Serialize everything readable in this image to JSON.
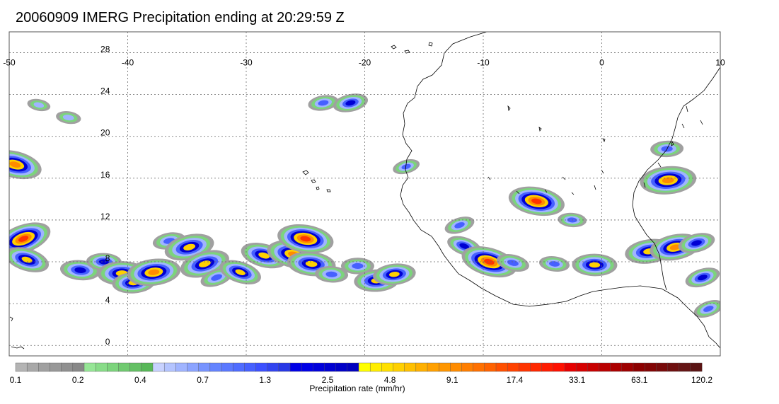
{
  "title": "20060909 IMERG Precipitation ending at 20:29:59 Z",
  "map": {
    "lon_range": [
      -50,
      10
    ],
    "lat_range": [
      -1,
      30
    ],
    "lon_ticks": [
      "-50",
      "-40",
      "-30",
      "-20",
      "-10",
      "0",
      "10"
    ],
    "lat_ticks": [
      "28",
      "24",
      "20",
      "16",
      "12",
      "8",
      "4",
      "0"
    ],
    "grid": true,
    "coastline_color": "#000000"
  },
  "colorbar": {
    "label": "Precipitation rate (mm/hr)",
    "tick_labels": [
      "0.1",
      "0.2",
      "0.4",
      "0.7",
      "1.3",
      "2.5",
      "4.8",
      "9.1",
      "17.4",
      "33.1",
      "63.1",
      "120.2"
    ],
    "colors": [
      "#b4b4b4",
      "#a8a8a8",
      "#a0a0a0",
      "#989898",
      "#909090",
      "#888888",
      "#96e696",
      "#88dc88",
      "#7cd47c",
      "#70ca70",
      "#64c064",
      "#58b858",
      "#c8d2ff",
      "#b4c4ff",
      "#a0b4ff",
      "#8ca4ff",
      "#7894ff",
      "#6484ff",
      "#5a78ff",
      "#4f6cff",
      "#4660ff",
      "#3c50ff",
      "#3244f0",
      "#2838e6",
      "#0000e6",
      "#0000e6",
      "#0000dc",
      "#0000d2",
      "#0000c8",
      "#0000be",
      "#ffff00",
      "#ffee00",
      "#ffe000",
      "#ffd000",
      "#ffc000",
      "#ffb000",
      "#ffa000",
      "#ff9600",
      "#ff8c00",
      "#ff7e00",
      "#ff7000",
      "#ff6200",
      "#ff5000",
      "#ff4200",
      "#ff3400",
      "#ff2800",
      "#ff1c00",
      "#ff1000",
      "#e60000",
      "#d60000",
      "#c80000",
      "#ba0000",
      "#ac0000",
      "#9e0000",
      "#8c0000",
      "#820505",
      "#780a0a",
      "#6e0f0f",
      "#641414",
      "#5a1414"
    ]
  },
  "rain_cells": [
    {
      "lon": -48.8,
      "lat": 10.2,
      "peak": 20
    },
    {
      "lon": -48.5,
      "lat": 8.2,
      "peak": 6
    },
    {
      "lon": -49.5,
      "lat": 17.3,
      "peak": 12
    },
    {
      "lon": -47.5,
      "lat": 23.0,
      "peak": 0.5
    },
    {
      "lon": -45.0,
      "lat": 21.8,
      "peak": 0.7
    },
    {
      "lon": -44.0,
      "lat": 7.2,
      "peak": 4
    },
    {
      "lon": -42.0,
      "lat": 8.0,
      "peak": 2.5
    },
    {
      "lon": -40.5,
      "lat": 6.9,
      "peak": 8
    },
    {
      "lon": -39.5,
      "lat": 6.0,
      "peak": 5
    },
    {
      "lon": -37.8,
      "lat": 7.0,
      "peak": 12
    },
    {
      "lon": -36.5,
      "lat": 10.0,
      "peak": 2
    },
    {
      "lon": -34.8,
      "lat": 9.4,
      "peak": 9
    },
    {
      "lon": -33.5,
      "lat": 7.8,
      "peak": 9
    },
    {
      "lon": -32.5,
      "lat": 6.5,
      "peak": 2
    },
    {
      "lon": -30.5,
      "lat": 7.0,
      "peak": 5
    },
    {
      "lon": -28.5,
      "lat": 8.6,
      "peak": 7
    },
    {
      "lon": -26.0,
      "lat": 8.7,
      "peak": 12
    },
    {
      "lon": -25.0,
      "lat": 10.2,
      "peak": 25
    },
    {
      "lon": -24.5,
      "lat": 7.8,
      "peak": 8
    },
    {
      "lon": -22.8,
      "lat": 6.8,
      "peak": 2
    },
    {
      "lon": -20.6,
      "lat": 7.6,
      "peak": 2
    },
    {
      "lon": -19.0,
      "lat": 6.2,
      "peak": 6
    },
    {
      "lon": -17.5,
      "lat": 6.8,
      "peak": 5
    },
    {
      "lon": -23.5,
      "lat": 23.2,
      "peak": 1.5
    },
    {
      "lon": -21.2,
      "lat": 23.2,
      "peak": 2.5
    },
    {
      "lon": -16.5,
      "lat": 17.1,
      "peak": 1
    },
    {
      "lon": -12.0,
      "lat": 11.5,
      "peak": 1.5
    },
    {
      "lon": -11.6,
      "lat": 9.5,
      "peak": 2.5
    },
    {
      "lon": -9.5,
      "lat": 8.0,
      "peak": 18
    },
    {
      "lon": -7.5,
      "lat": 7.9,
      "peak": 2
    },
    {
      "lon": -5.5,
      "lat": 13.8,
      "peak": 20
    },
    {
      "lon": -4.0,
      "lat": 7.8,
      "peak": 1.5
    },
    {
      "lon": -2.5,
      "lat": 12.0,
      "peak": 1.2
    },
    {
      "lon": -0.6,
      "lat": 7.7,
      "peak": 6
    },
    {
      "lon": 5.5,
      "lat": 18.8,
      "peak": 2
    },
    {
      "lon": 5.6,
      "lat": 15.8,
      "peak": 15
    },
    {
      "lon": 4.0,
      "lat": 9.0,
      "peak": 8
    },
    {
      "lon": 6.2,
      "lat": 9.4,
      "peak": 10
    },
    {
      "lon": 8.0,
      "lat": 9.8,
      "peak": 3
    },
    {
      "lon": 8.5,
      "lat": 6.5,
      "peak": 2.5
    },
    {
      "lon": 9.0,
      "lat": 3.5,
      "peak": 1.5
    }
  ]
}
